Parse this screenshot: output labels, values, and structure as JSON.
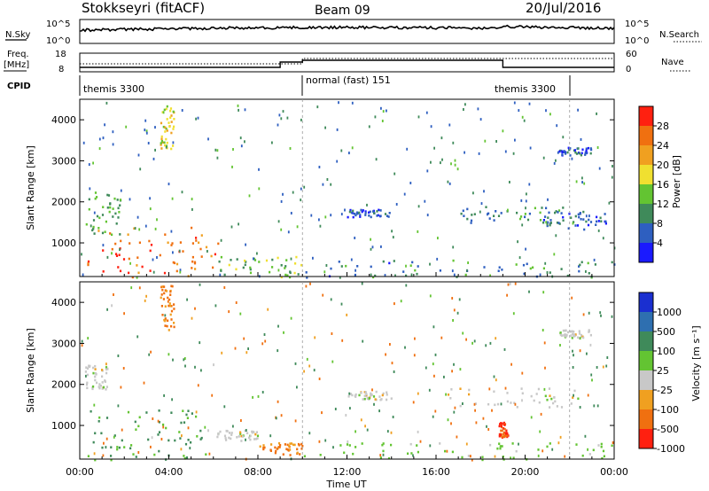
{
  "header": {
    "radar": "Stokkseyri (fitACF)",
    "beam": "Beam 09",
    "date": "20/Jul/2016"
  },
  "strip_labels": {
    "nsky": "N.Sky",
    "nsky_ticks": [
      "10^5",
      "10^0"
    ],
    "nsearch": "N.Search",
    "nsearch_ticks": [
      "10^5",
      "10^0"
    ],
    "freq": "Freq.",
    "freq_unit": "[MHz]",
    "freq_ticks": [
      "18",
      "8"
    ],
    "nave": "Nave",
    "nave_ticks": [
      "60",
      "0"
    ],
    "cpid": "CPID"
  },
  "cpid_segments": [
    {
      "name": "themis 3300",
      "start_hour": 0.0,
      "end_hour": 10.0
    },
    {
      "name": "normal (fast) 151",
      "start_hour": 10.0,
      "end_hour": 18.9
    },
    {
      "name": "themis 3300",
      "start_hour": 18.9,
      "end_hour": 22.0
    }
  ],
  "x_axis": {
    "label": "Time UT",
    "ticks": [
      "00:00",
      "04:00",
      "08:00",
      "12:00",
      "16:00",
      "20:00",
      "00:00"
    ],
    "range_hours": [
      0,
      24
    ]
  },
  "y_axis": {
    "label": "Slant Range [km]",
    "ticks": [
      "1000",
      "2000",
      "3000",
      "4000"
    ],
    "range_km": [
      180,
      4500
    ]
  },
  "power_scale": {
    "label": "Power [dB]",
    "ticks": [
      "4",
      "8",
      "12",
      "16",
      "20",
      "24",
      "28"
    ],
    "colors": [
      "#1a1aff",
      "#2e5fc0",
      "#3f8a5a",
      "#63c432",
      "#f0e030",
      "#f0a020",
      "#f07010",
      "#ff2010"
    ]
  },
  "velocity_scale": {
    "label": "Velocity [m s⁻¹]",
    "ticks": [
      "1000",
      "500",
      "100",
      "25",
      "-25",
      "-100",
      "-500",
      "-1000"
    ],
    "colors": [
      "#1a2fd0",
      "#2e6fb0",
      "#3f8a5a",
      "#63c432",
      "#c8c8c8",
      "#f0a020",
      "#f07010",
      "#ff2010"
    ]
  },
  "chart_data": [
    {
      "type": "heatmap",
      "title": "Power",
      "xlabel": "",
      "ylabel": "Slant Range [km]",
      "x_unit": "hours UT",
      "xlim": [
        0,
        24
      ],
      "ylim": [
        180,
        4500
      ],
      "colorbar": {
        "label": "Power [dB]",
        "range": [
          0,
          30
        ]
      },
      "regions": [
        {
          "x": [
            0.3,
            6.2
          ],
          "y": [
            180,
            1400
          ],
          "value": 26
        },
        {
          "x": [
            0.2,
            1.8
          ],
          "y": [
            1200,
            2300
          ],
          "value": 12
        },
        {
          "x": [
            3.6,
            4.2
          ],
          "y": [
            3300,
            4450
          ],
          "value": 18
        },
        {
          "x": [
            6.2,
            10.0
          ],
          "y": [
            180,
            700
          ],
          "value": 14
        },
        {
          "x": [
            10.0,
            24.0
          ],
          "y": [
            180,
            600
          ],
          "value": 8
        },
        {
          "x": [
            12.0,
            14.0
          ],
          "y": [
            1650,
            1850
          ],
          "value": 6
        },
        {
          "x": [
            17.0,
            21.8
          ],
          "y": [
            1500,
            1900
          ],
          "value": 9
        },
        {
          "x": [
            20.8,
            23.8
          ],
          "y": [
            1350,
            1800
          ],
          "value": 7
        },
        {
          "x": [
            21.5,
            23.0
          ],
          "y": [
            3150,
            3350
          ],
          "value": 5
        }
      ]
    },
    {
      "type": "heatmap",
      "title": "Velocity",
      "xlabel": "Time UT",
      "ylabel": "Slant Range [km]",
      "x_unit": "hours UT",
      "xlim": [
        0,
        24
      ],
      "ylim": [
        180,
        4500
      ],
      "colorbar": {
        "label": "Velocity [m s⁻¹]",
        "range": [
          -1000,
          1000
        ]
      },
      "regions": [
        {
          "x": [
            0.3,
            6.2
          ],
          "y": [
            180,
            1400
          ],
          "value": 120
        },
        {
          "x": [
            0.2,
            1.2
          ],
          "y": [
            1900,
            2500
          ],
          "value": 0
        },
        {
          "x": [
            3.6,
            4.2
          ],
          "y": [
            3300,
            4450
          ],
          "value": -150
        },
        {
          "x": [
            6.0,
            8.0
          ],
          "y": [
            650,
            900
          ],
          "value": 0
        },
        {
          "x": [
            8.0,
            10.0
          ],
          "y": [
            300,
            600
          ],
          "value": -120
        },
        {
          "x": [
            10.0,
            24.0
          ],
          "y": [
            180,
            600
          ],
          "value": 50
        },
        {
          "x": [
            12.0,
            14.0
          ],
          "y": [
            1650,
            1850
          ],
          "value": 0
        },
        {
          "x": [
            16.5,
            22.5
          ],
          "y": [
            1450,
            1950
          ],
          "value": 0
        },
        {
          "x": [
            18.8,
            19.2
          ],
          "y": [
            700,
            1100
          ],
          "value": -600
        },
        {
          "x": [
            21.5,
            23.0
          ],
          "y": [
            3150,
            3350
          ],
          "value": 0
        }
      ]
    }
  ]
}
